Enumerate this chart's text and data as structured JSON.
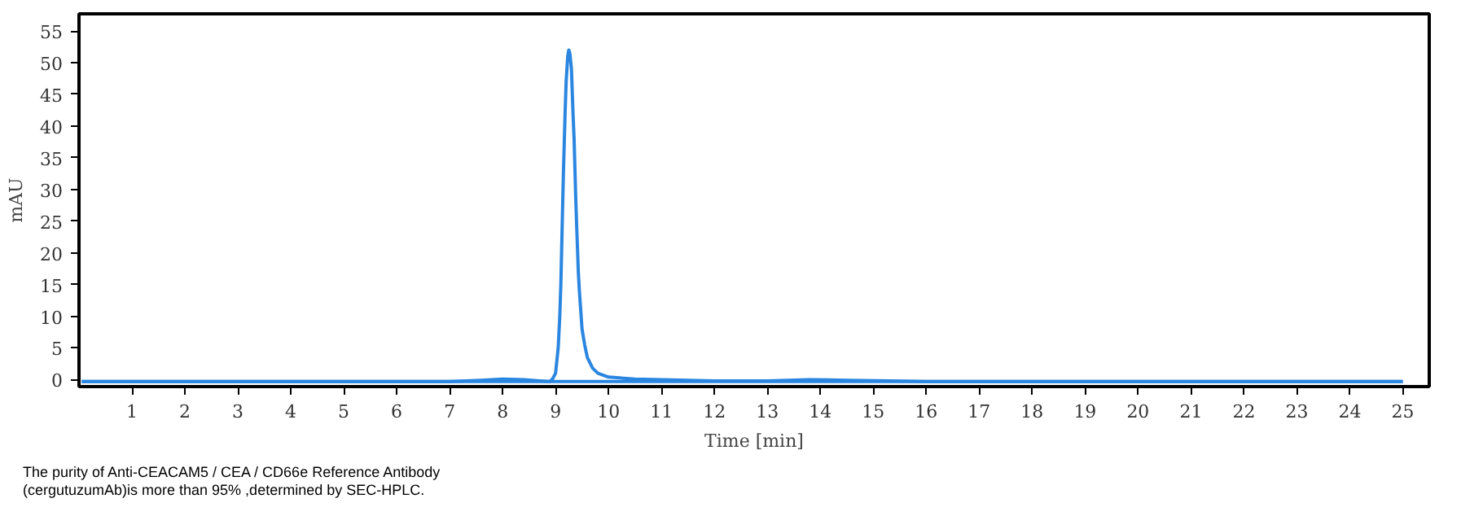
{
  "chart_data": {
    "type": "line",
    "xlabel": "Time [min]",
    "ylabel": "mAU",
    "xlim": [
      0,
      25.5
    ],
    "ylim": [
      -1.1,
      57.7
    ],
    "xticks": [
      1,
      2,
      3,
      4,
      5,
      6,
      7,
      8,
      9,
      10,
      11,
      12,
      13,
      14,
      15,
      16,
      17,
      18,
      19,
      20,
      21,
      22,
      23,
      24,
      25
    ],
    "yticks": [
      0,
      5,
      10,
      15,
      20,
      25,
      30,
      35,
      40,
      45,
      50,
      55
    ],
    "line_style": "solid",
    "series": [
      {
        "color": "#2a86e0",
        "x": [
          0.05,
          1,
          2,
          3,
          4,
          5,
          6,
          7,
          7.6,
          8.0,
          8.4,
          8.7,
          8.9,
          8.95,
          9.0,
          9.05,
          9.08,
          9.1,
          9.13,
          9.15,
          9.18,
          9.2,
          9.23,
          9.25,
          9.27,
          9.3,
          9.33,
          9.35,
          9.38,
          9.4,
          9.43,
          9.45,
          9.5,
          9.55,
          9.6,
          9.7,
          9.8,
          10.0,
          10.5,
          11,
          12,
          13,
          13.8,
          14.5,
          15.3,
          16,
          17,
          18,
          19,
          20,
          21,
          22,
          23,
          24,
          25
        ],
        "values": [
          -0.3,
          -0.3,
          -0.3,
          -0.3,
          -0.3,
          -0.3,
          -0.3,
          -0.3,
          -0.1,
          0.1,
          0.0,
          -0.2,
          -0.3,
          0.2,
          1,
          5,
          10,
          15,
          26,
          33,
          42,
          47,
          51,
          52,
          51.5,
          49,
          42,
          38,
          29,
          24,
          17,
          14,
          8,
          5.5,
          3.5,
          1.8,
          1.0,
          0.4,
          0.1,
          0.0,
          -0.2,
          -0.2,
          0.0,
          -0.1,
          -0.2,
          -0.3,
          -0.3,
          -0.3,
          -0.3,
          -0.3,
          -0.3,
          -0.3,
          -0.3,
          -0.3,
          -0.3
        ]
      },
      {
        "color": "#2a86e0",
        "x": [
          0.05,
          25
        ],
        "values": [
          -0.3,
          -0.3
        ]
      }
    ],
    "annotations": [
      "The purity of Anti-CEACAM5 / CEA / CD66e Reference Antibody\n(cergutuzumAb)is more than 95% ,determined by SEC-HPLC."
    ]
  }
}
